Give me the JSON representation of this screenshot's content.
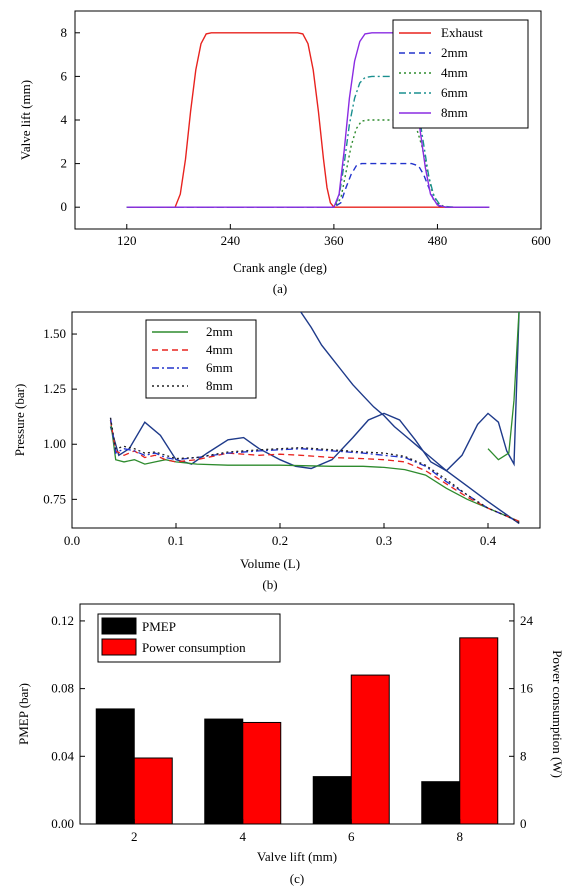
{
  "chart_data": [
    {
      "type": "line",
      "panel_label": "(a)",
      "xlabel": "Crank angle (deg)",
      "ylabel": "Valve lift (mm)",
      "xlim": [
        60,
        600
      ],
      "ylim": [
        -1,
        9
      ],
      "xticks": [
        "120",
        "240",
        "360",
        "480",
        "600"
      ],
      "yticks": [
        "0",
        "2",
        "4",
        "6",
        "8"
      ],
      "legend_position": "top-right",
      "series": [
        {
          "name": "Exhaust",
          "color": "#e8231f",
          "dash": "solid",
          "x": [
            120,
            176,
            182,
            188,
            194,
            200,
            206,
            212,
            218,
            230,
            260,
            290,
            318,
            324,
            330,
            336,
            342,
            348,
            352,
            356,
            360,
            380,
            400,
            420,
            440,
            460,
            480,
            500,
            520,
            540
          ],
          "y": [
            0,
            0,
            0.6,
            2.2,
            4.4,
            6.3,
            7.5,
            7.95,
            8,
            8,
            8,
            8,
            8,
            7.95,
            7.5,
            6.3,
            4.4,
            2.2,
            0.9,
            0.2,
            0,
            0,
            0,
            0,
            0,
            0,
            0,
            0,
            0,
            0
          ]
        },
        {
          "name": "2mm",
          "color": "#2233cc",
          "dash": "6,4",
          "x": [
            120,
            360,
            368,
            374,
            380,
            386,
            392,
            400,
            420,
            440,
            450,
            458,
            464,
            470,
            476,
            482,
            490,
            500,
            540
          ],
          "y": [
            0,
            0,
            0.2,
            0.9,
            1.5,
            1.9,
            2.0,
            2.0,
            2.0,
            2.0,
            2.0,
            1.9,
            1.5,
            0.9,
            0.3,
            0.05,
            0,
            0,
            0
          ]
        },
        {
          "name": "4mm",
          "color": "#2e8b2e",
          "dash": "2,3",
          "x": [
            120,
            360,
            368,
            374,
            380,
            386,
            392,
            400,
            420,
            440,
            448,
            456,
            462,
            468,
            474,
            480,
            488,
            500,
            540
          ],
          "y": [
            0,
            0,
            0.4,
            1.6,
            2.8,
            3.6,
            3.95,
            4.0,
            4.0,
            4.0,
            3.95,
            3.6,
            2.8,
            1.7,
            0.7,
            0.2,
            0.02,
            0,
            0
          ]
        },
        {
          "name": "6mm",
          "color": "#1a8f8f",
          "dash": "7,3,2,3",
          "x": [
            120,
            360,
            366,
            372,
            378,
            384,
            390,
            396,
            404,
            420,
            440,
            446,
            452,
            458,
            464,
            470,
            476,
            484,
            500,
            540
          ],
          "y": [
            0,
            0,
            0.5,
            2.0,
            3.8,
            5.0,
            5.7,
            5.95,
            6.0,
            6.0,
            6.0,
            5.95,
            5.5,
            4.4,
            2.9,
            1.4,
            0.5,
            0.05,
            0,
            0
          ]
        },
        {
          "name": "8mm",
          "color": "#8a2be2",
          "dash": "solid",
          "x": [
            120,
            360,
            366,
            372,
            378,
            384,
            390,
            396,
            404,
            420,
            436,
            442,
            448,
            454,
            460,
            466,
            472,
            480,
            490,
            540
          ],
          "y": [
            0,
            0,
            0.6,
            2.6,
            5.0,
            6.7,
            7.6,
            7.95,
            8.0,
            8.0,
            8.0,
            7.8,
            7.0,
            5.5,
            3.5,
            1.8,
            0.6,
            0.1,
            0,
            0
          ]
        }
      ]
    },
    {
      "type": "line",
      "panel_label": "(b)",
      "xlabel": "Volume (L)",
      "ylabel": "Pressure (bar)",
      "xlim": [
        0.0,
        0.45
      ],
      "ylim": [
        0.62,
        1.6
      ],
      "xticks": [
        "0.0",
        "0.1",
        "0.2",
        "0.3",
        "0.4"
      ],
      "yticks": [
        "0.75",
        "1.00",
        "1.25",
        "1.50"
      ],
      "legend_position": "top-left",
      "series": [
        {
          "name": "2mm",
          "color": "#2e8b2e",
          "dash": "solid",
          "x": [
            0.037,
            0.042,
            0.05,
            0.06,
            0.07,
            0.08,
            0.09,
            0.1,
            0.12,
            0.15,
            0.2,
            0.25,
            0.28,
            0.3,
            0.32,
            0.34,
            0.36,
            0.38,
            0.4,
            0.42,
            0.43
          ],
          "y": [
            1.11,
            0.93,
            0.92,
            0.93,
            0.91,
            0.92,
            0.93,
            0.92,
            0.91,
            0.905,
            0.905,
            0.9,
            0.9,
            0.895,
            0.885,
            0.86,
            0.8,
            0.75,
            0.71,
            0.67,
            0.65
          ],
          "x2": [
            0.4,
            0.41,
            0.42,
            0.425,
            0.43
          ],
          "y2": [
            0.98,
            0.93,
            0.96,
            1.2,
            1.62
          ]
        },
        {
          "name": "4mm",
          "color": "#e8231f",
          "dash": "6,4",
          "x": [
            0.037,
            0.042,
            0.05,
            0.06,
            0.07,
            0.08,
            0.09,
            0.1,
            0.12,
            0.15,
            0.18,
            0.2,
            0.22,
            0.25,
            0.28,
            0.3,
            0.32,
            0.34,
            0.36,
            0.38,
            0.4,
            0.42,
            0.43
          ],
          "y": [
            1.11,
            0.97,
            0.95,
            0.97,
            0.94,
            0.95,
            0.93,
            0.92,
            0.93,
            0.96,
            0.95,
            0.955,
            0.95,
            0.94,
            0.935,
            0.93,
            0.92,
            0.88,
            0.82,
            0.76,
            0.71,
            0.67,
            0.65
          ]
        },
        {
          "name": "6mm",
          "color": "#2233cc",
          "dash": "7,3,2,3",
          "x": [
            0.037,
            0.042,
            0.05,
            0.06,
            0.07,
            0.08,
            0.09,
            0.1,
            0.12,
            0.15,
            0.18,
            0.2,
            0.22,
            0.25,
            0.28,
            0.3,
            0.32,
            0.34,
            0.36,
            0.38,
            0.4,
            0.42,
            0.43
          ],
          "y": [
            1.12,
            0.96,
            0.98,
            0.97,
            0.95,
            0.96,
            0.94,
            0.93,
            0.94,
            0.96,
            0.97,
            0.975,
            0.98,
            0.97,
            0.96,
            0.95,
            0.94,
            0.9,
            0.83,
            0.77,
            0.71,
            0.67,
            0.645
          ]
        },
        {
          "name": "8mm",
          "color": "#222222",
          "dash": "2,3",
          "x": [
            0.037,
            0.042,
            0.05,
            0.06,
            0.07,
            0.08,
            0.09,
            0.1,
            0.12,
            0.15,
            0.18,
            0.2,
            0.22,
            0.25,
            0.28,
            0.3,
            0.32,
            0.34,
            0.36,
            0.38,
            0.4,
            0.42,
            0.43
          ],
          "y": [
            1.12,
            0.98,
            0.99,
            0.98,
            0.96,
            0.965,
            0.95,
            0.935,
            0.94,
            0.965,
            0.975,
            0.98,
            0.985,
            0.975,
            0.965,
            0.96,
            0.945,
            0.905,
            0.84,
            0.77,
            0.71,
            0.67,
            0.645
          ]
        }
      ],
      "unlabeled_curves": [
        {
          "color": "#1e3a8a",
          "x": [
            0.037,
            0.045,
            0.055,
            0.07,
            0.085,
            0.1,
            0.115,
            0.13,
            0.15,
            0.165,
            0.18,
            0.2,
            0.215,
            0.23,
            0.25,
            0.27,
            0.285,
            0.3,
            0.315,
            0.33,
            0.345,
            0.36,
            0.375,
            0.39,
            0.4,
            0.41,
            0.418,
            0.425,
            0.43
          ],
          "y": [
            1.08,
            0.95,
            0.98,
            1.1,
            1.04,
            0.93,
            0.91,
            0.96,
            1.02,
            1.03,
            0.98,
            0.93,
            0.9,
            0.89,
            0.93,
            1.03,
            1.11,
            1.14,
            1.11,
            1.02,
            0.92,
            0.88,
            0.95,
            1.09,
            1.14,
            1.1,
            0.97,
            0.91,
            1.62
          ]
        },
        {
          "color": "#1e3a8a",
          "x": [
            0.22,
            0.23,
            0.24,
            0.25,
            0.26,
            0.27,
            0.28,
            0.29,
            0.3,
            0.31,
            0.32,
            0.33,
            0.34,
            0.35,
            0.36,
            0.38,
            0.4,
            0.43
          ],
          "y": [
            1.6,
            1.53,
            1.45,
            1.39,
            1.33,
            1.27,
            1.22,
            1.17,
            1.13,
            1.08,
            1.04,
            1.0,
            0.96,
            0.92,
            0.88,
            0.81,
            0.74,
            0.64
          ]
        }
      ]
    },
    {
      "type": "bar",
      "panel_label": "(c)",
      "xlabel": "Valve lift (mm)",
      "ylabel": "PMEP (bar)",
      "y2label": "Power consumption (W)",
      "categories": [
        "2",
        "4",
        "6",
        "8"
      ],
      "ylim": [
        0,
        0.13
      ],
      "y2lim": [
        0,
        26
      ],
      "yticks": [
        "0.00",
        "0.04",
        "0.08",
        "0.12"
      ],
      "y2ticks": [
        "0",
        "8",
        "16",
        "24"
      ],
      "legend_position": "top-left",
      "series": [
        {
          "name": "PMEP",
          "axis": "left",
          "color": "#000000",
          "values": [
            0.068,
            0.062,
            0.028,
            0.025
          ]
        },
        {
          "name": "Power consumption",
          "axis": "right",
          "color": "#ff0000",
          "values": [
            7.8,
            12,
            17.6,
            22
          ]
        }
      ]
    }
  ]
}
